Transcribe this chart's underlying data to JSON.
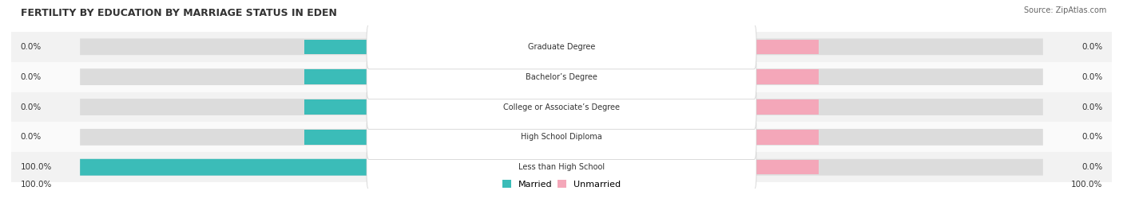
{
  "title": "FERTILITY BY EDUCATION BY MARRIAGE STATUS IN EDEN",
  "source": "Source: ZipAtlas.com",
  "categories": [
    "Less than High School",
    "High School Diploma",
    "College or Associate’s Degree",
    "Bachelor’s Degree",
    "Graduate Degree"
  ],
  "married_values": [
    100.0,
    0.0,
    0.0,
    0.0,
    0.0
  ],
  "unmarried_values": [
    0.0,
    0.0,
    0.0,
    0.0,
    0.0
  ],
  "married_color": "#3BBCB8",
  "unmarried_color": "#F4A7B9",
  "bar_bg_color": "#DCDCDC",
  "row_bg_even": "#F2F2F2",
  "row_bg_odd": "#FAFAFA",
  "label_color": "#333333",
  "title_color": "#333333",
  "bar_height": 0.55,
  "bottom_left_label": "100.0%",
  "bottom_right_label": "100.0%",
  "xlim": [
    -120,
    120
  ],
  "bar_max": 105
}
